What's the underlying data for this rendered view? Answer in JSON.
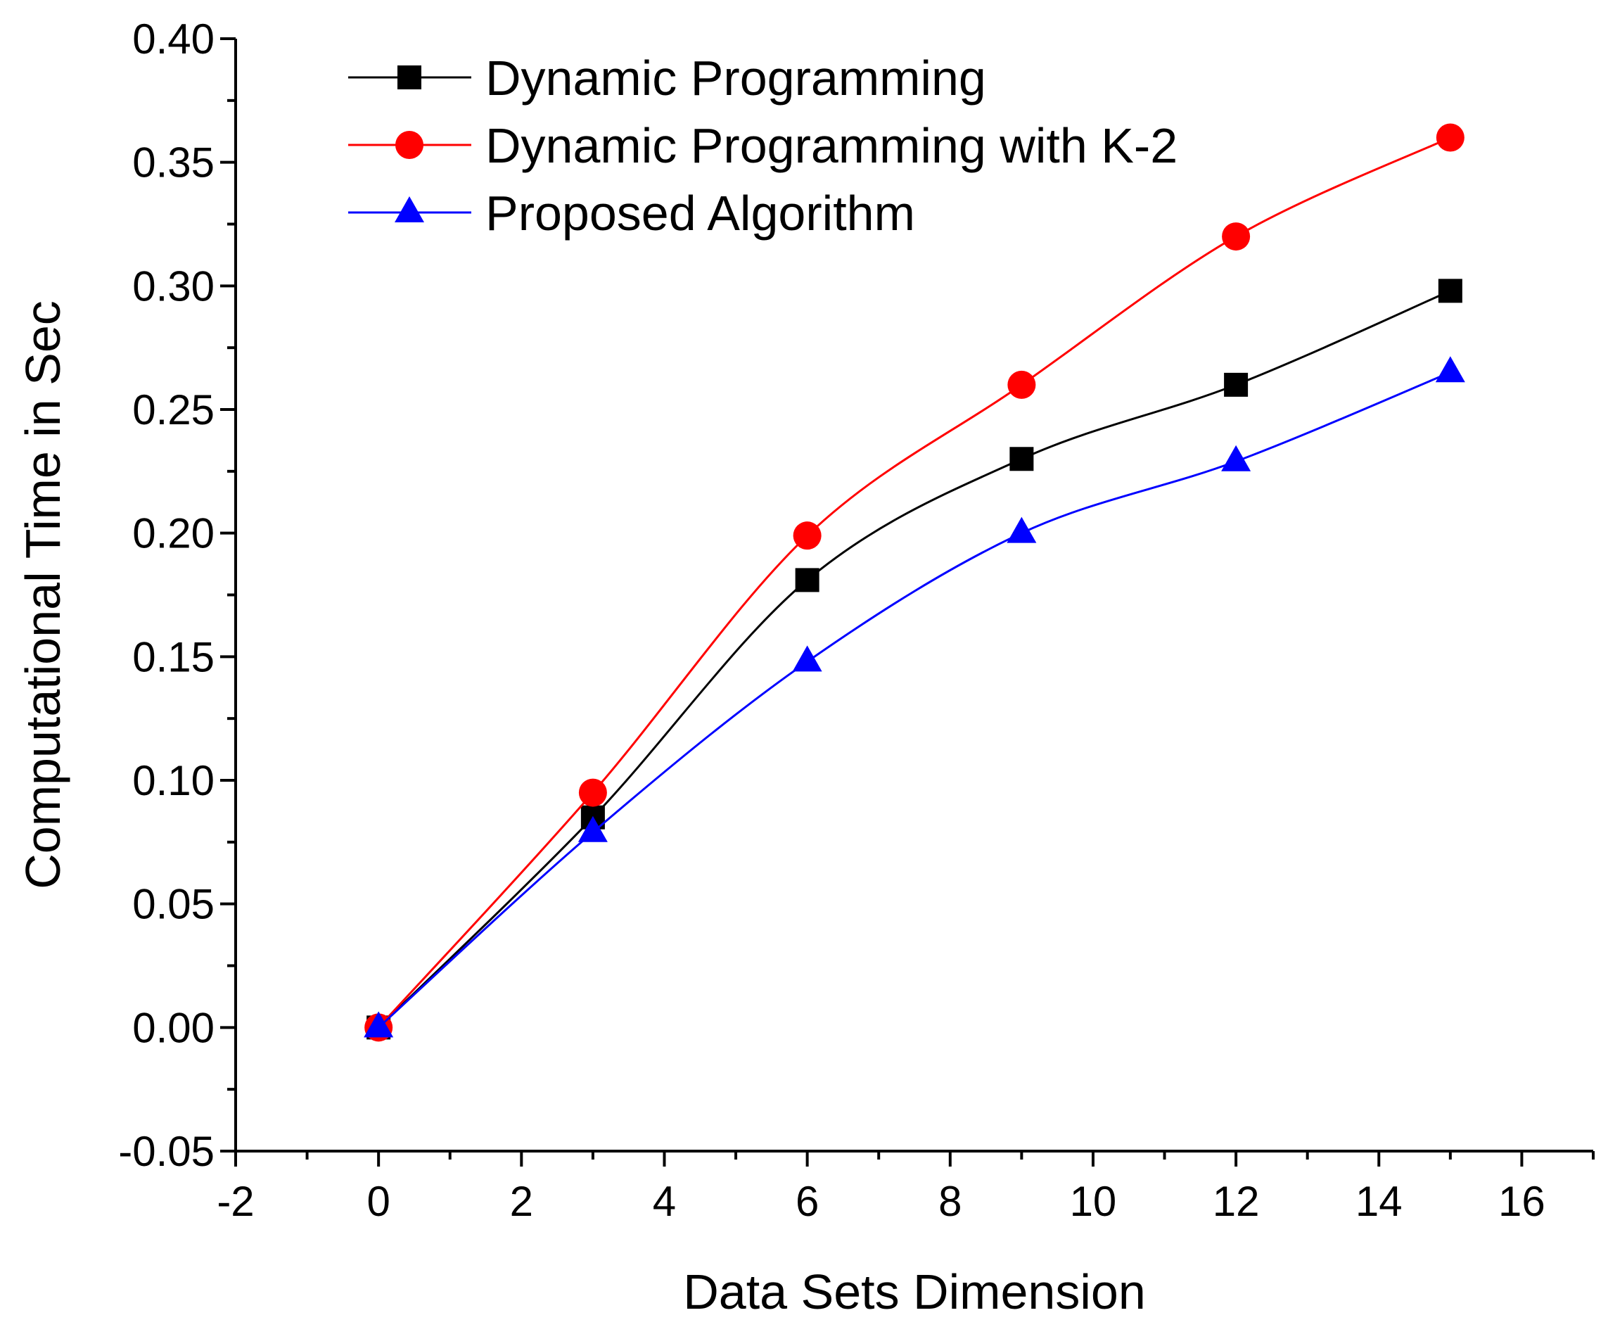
{
  "chart_data": {
    "type": "line",
    "title": "",
    "xlabel": "Data Sets Dimension",
    "ylabel": "Computational Time in Sec",
    "xlim": [
      -2,
      17
    ],
    "ylim": [
      -0.05,
      0.4
    ],
    "x_ticks": [
      "-2",
      "0",
      "2",
      "4",
      "6",
      "8",
      "10",
      "12",
      "14",
      "16"
    ],
    "x_tick_values": [
      -2,
      0,
      2,
      4,
      6,
      8,
      10,
      12,
      14,
      16
    ],
    "y_ticks": [
      "-0.05",
      "0.00",
      "0.05",
      "0.10",
      "0.15",
      "0.20",
      "0.25",
      "0.30",
      "0.35",
      "0.40"
    ],
    "y_tick_values": [
      -0.05,
      0.0,
      0.05,
      0.1,
      0.15,
      0.2,
      0.25,
      0.3,
      0.35,
      0.4
    ],
    "x": [
      0,
      3,
      6,
      9,
      12,
      15
    ],
    "legend_position": "top-left",
    "series": [
      {
        "name": "Dynamic Programming",
        "marker": "square",
        "color": "#000000",
        "values": [
          0.0,
          0.085,
          0.181,
          0.23,
          0.26,
          0.298
        ]
      },
      {
        "name": "Dynamic Programming with K-2",
        "marker": "circle",
        "color": "#ff0000",
        "values": [
          0.0,
          0.095,
          0.199,
          0.26,
          0.32,
          0.36
        ]
      },
      {
        "name": "Proposed Algorithm",
        "marker": "triangle",
        "color": "#0000ff",
        "values": [
          0.0,
          0.079,
          0.148,
          0.2,
          0.229,
          0.265
        ]
      }
    ]
  }
}
